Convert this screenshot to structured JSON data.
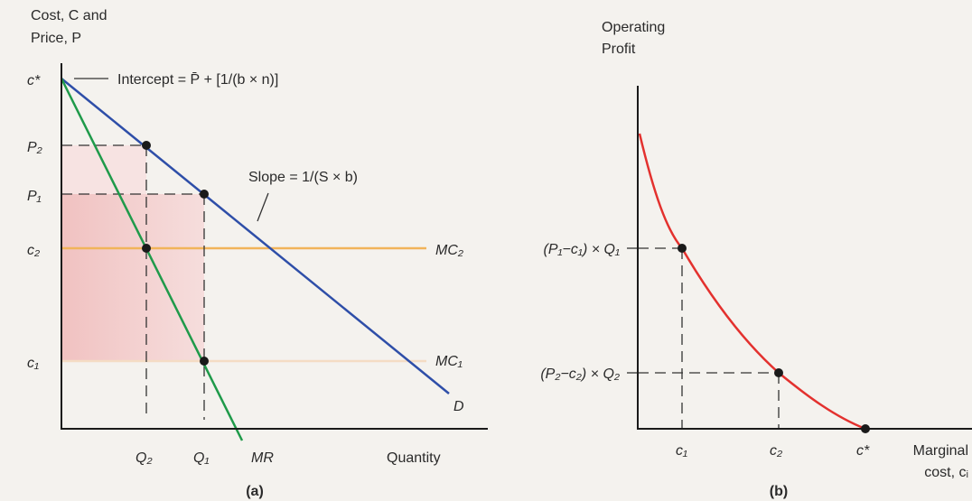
{
  "panel_a": {
    "caption": "(a)",
    "y_title_line1": "Cost, C and",
    "y_title_line2": "Price, P",
    "x_title": "Quantity",
    "ticks_y": {
      "c_star": "c*",
      "p2": "P₂",
      "p1": "P₁",
      "c2": "c₂",
      "c1": "c₁"
    },
    "ticks_x": {
      "q2": "Q₂",
      "q1": "Q₁"
    },
    "intercept_note": "Intercept = P̄ + [1/(b × n)]",
    "slope_note": "Slope = 1/(S × b)",
    "curve_labels": {
      "mc2": "MC₂",
      "mc1": "MC₁",
      "demand": "D",
      "mr": "MR"
    }
  },
  "panel_b": {
    "caption": "(b)",
    "y_title_line1": "Operating",
    "y_title_line2": "Profit",
    "x_title_line1": "Marginal",
    "x_title_line2": "cost, cᵢ",
    "ticks_y": {
      "profit1": "(P₁−c₁) × Q₁",
      "profit2": "(P₂−c₂) × Q₂"
    },
    "ticks_x": {
      "c1": "c₁",
      "c2": "c₂",
      "c_star": "c*"
    }
  },
  "colors": {
    "demand": "#2e4ea8",
    "marginal_revenue": "#1f9a4a",
    "mc2": "#f1b45a",
    "mc1": "#f4dcc4",
    "profit_shade": "#f3c9c9",
    "profit_curve": "#e3312e"
  }
}
